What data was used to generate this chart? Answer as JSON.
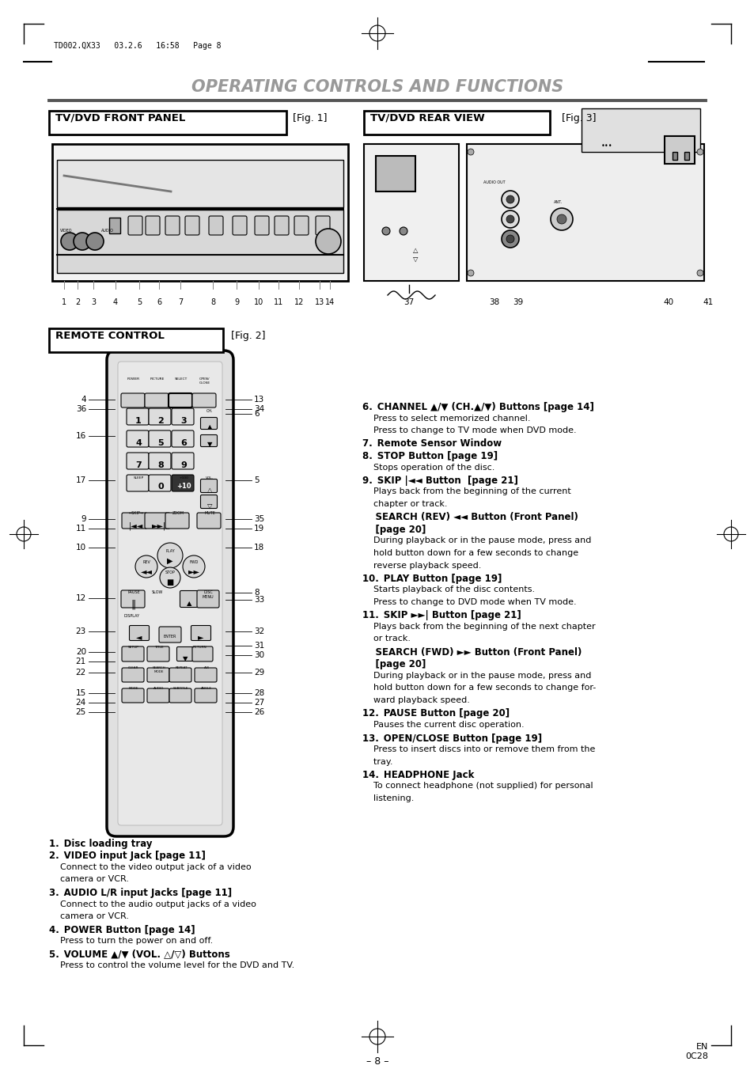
{
  "page_bg": "#ffffff",
  "title": "OPERATING CONTROLS AND FUNCTIONS",
  "title_color": "#999999",
  "header_text": "TD002.QX33   03.2.6   16:58   Page 8",
  "section1_title": "TV/DVD FRONT PANEL",
  "section1_fig": "[Fig. 1]",
  "section2_title": "TV/DVD REAR VIEW",
  "section2_fig": "[Fig. 3]",
  "section3_title": "REMOTE CONTROL",
  "section3_fig": "[Fig. 2]",
  "footer_left": "– 8 –",
  "footer_right": "EN\n0C28"
}
